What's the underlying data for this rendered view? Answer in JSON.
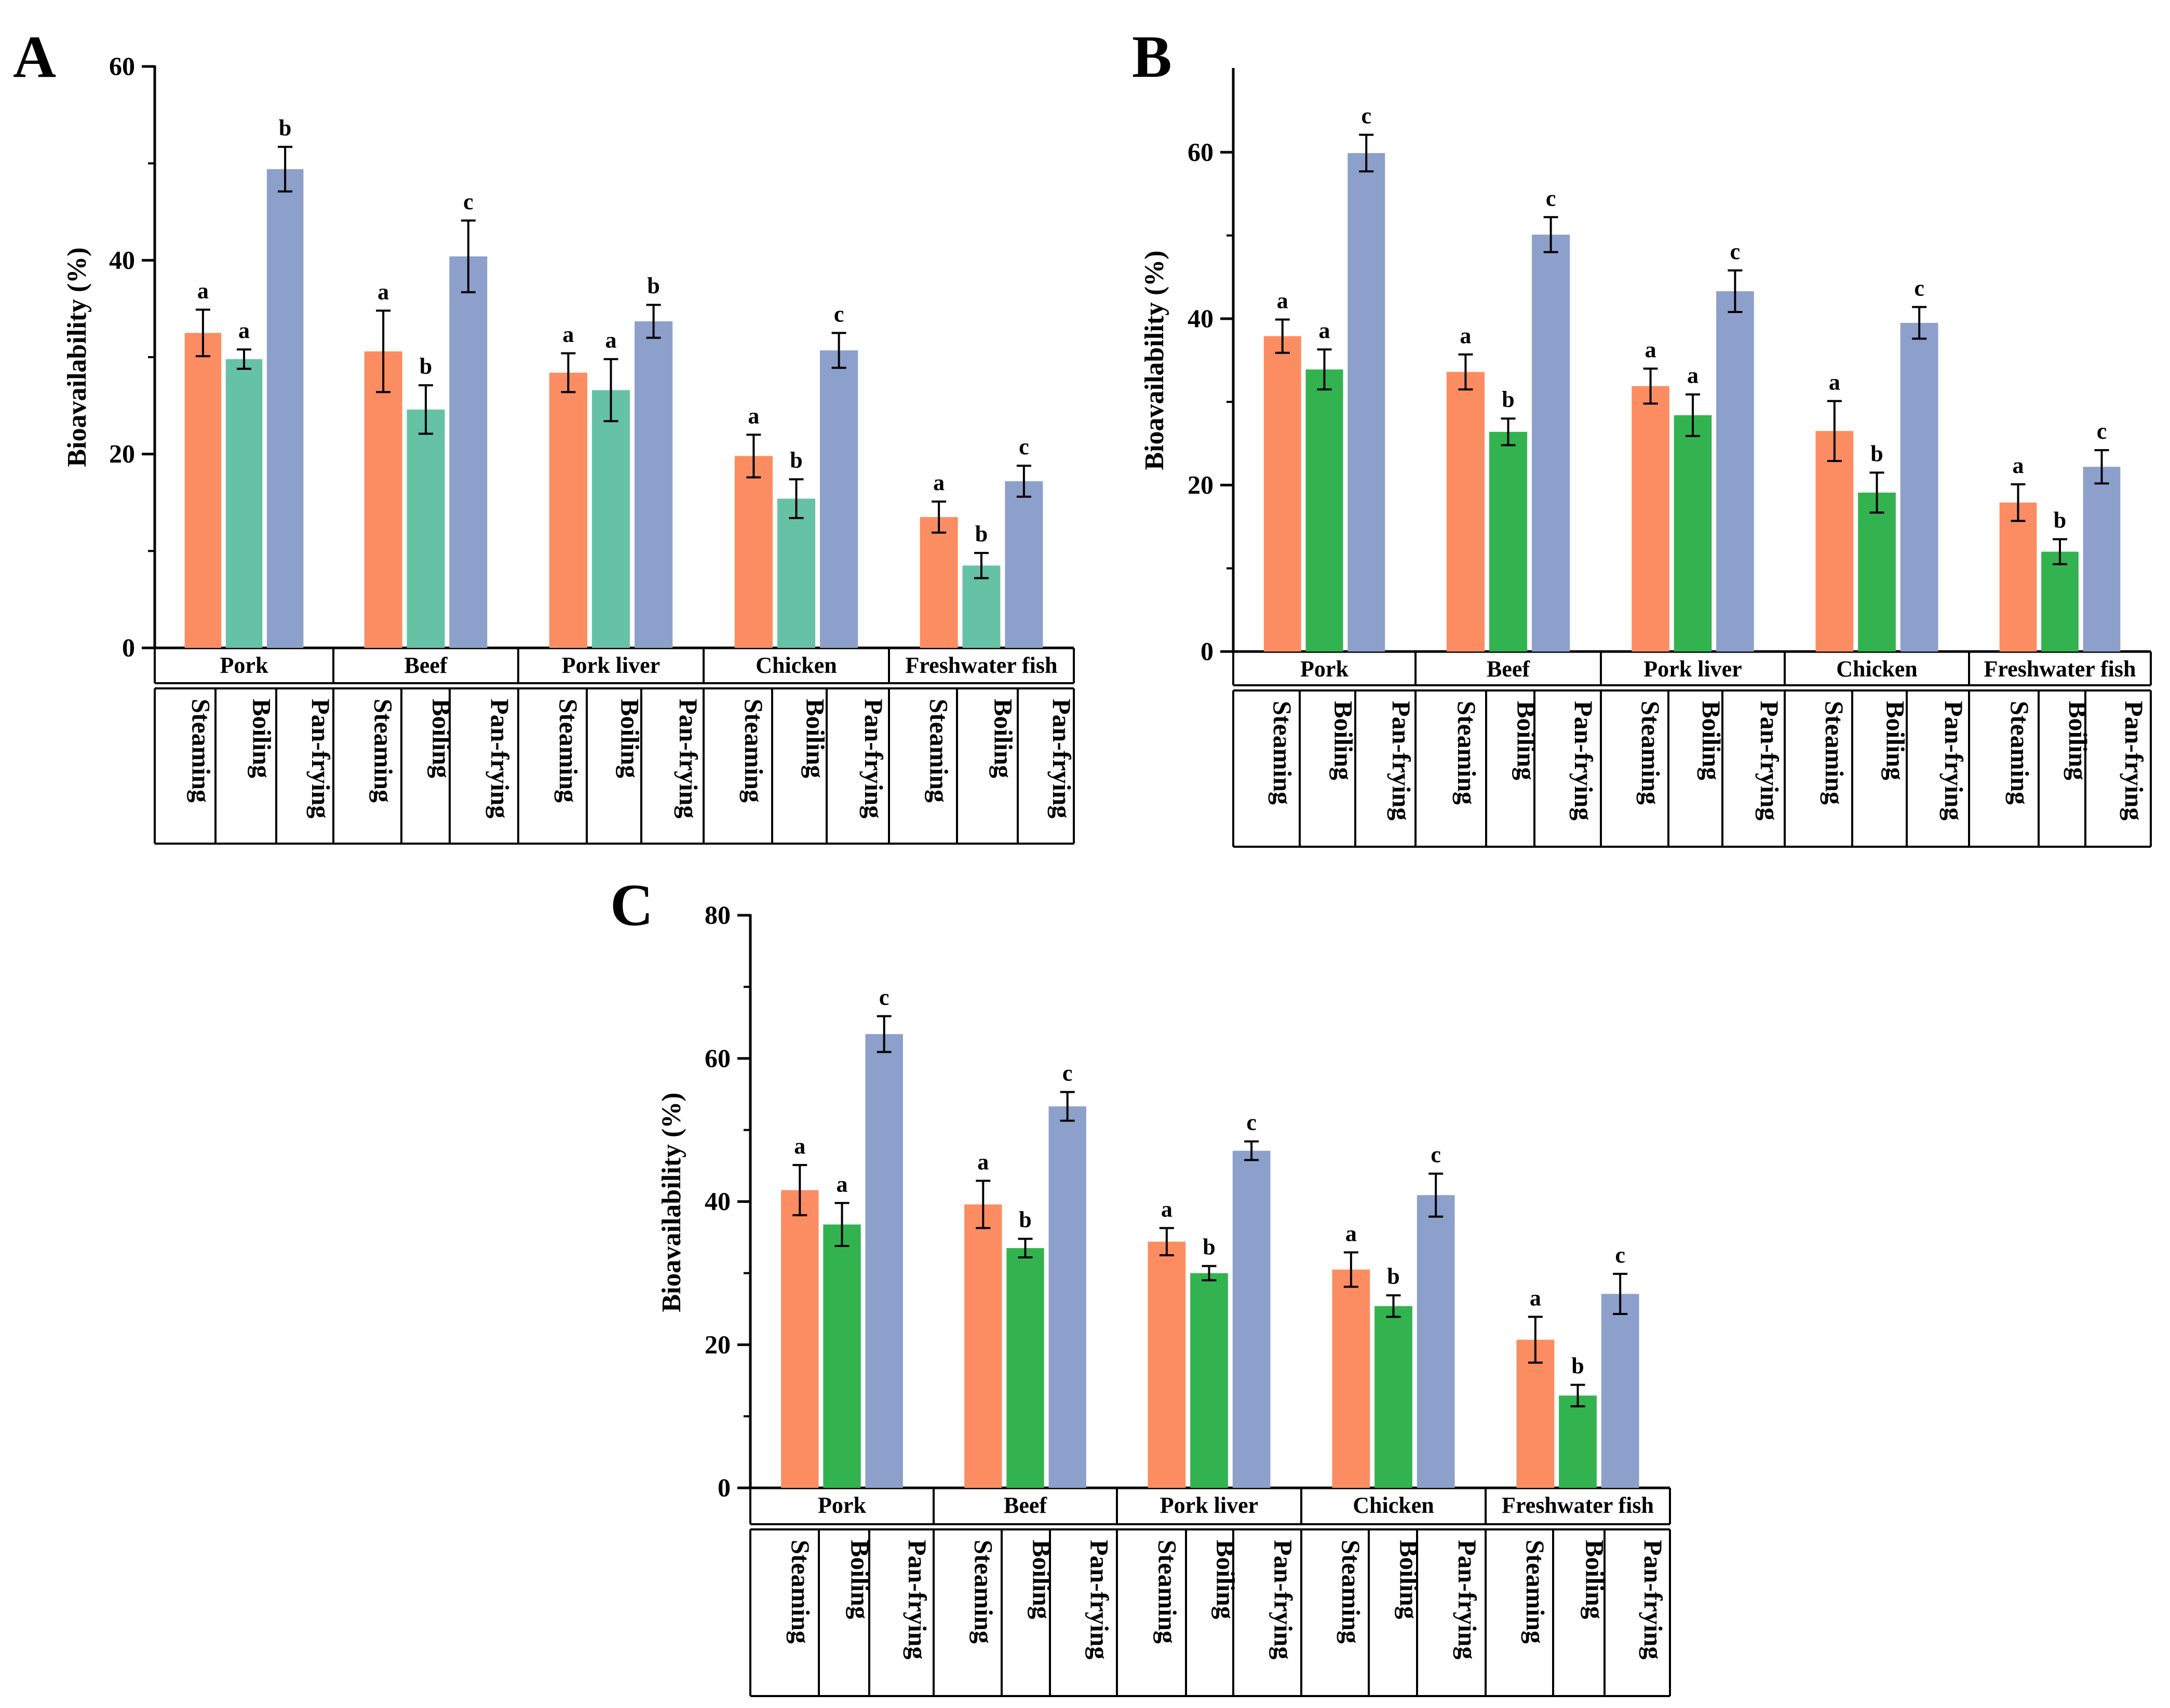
{
  "colors": {
    "steaming": "#FC8D62",
    "boiling_A": "#66C2A5",
    "boiling_BC": "#33B34F",
    "pan_frying": "#8DA0CB",
    "axis": "#000000"
  },
  "chart_data": [
    {
      "panel": "A",
      "type": "bar",
      "ylabel": "Bioavailability (%)",
      "ylim": [
        0,
        60
      ],
      "yticks": [
        0,
        20,
        40,
        60
      ],
      "categories": [
        "Pork",
        "Beef",
        "Pork liver",
        "Chicken",
        "Freshwater fish"
      ],
      "methods": [
        "Steaming",
        "Boiling",
        "Pan-frying"
      ],
      "series": [
        {
          "values": [
            32.5,
            30.6,
            28.4,
            19.8,
            13.5
          ],
          "errors": [
            2.4,
            4.2,
            2.0,
            2.2,
            1.6
          ],
          "letters": [
            "a",
            "a",
            "a",
            "a",
            "a"
          ]
        },
        {
          "values": [
            29.8,
            24.6,
            26.6,
            15.4,
            8.5
          ],
          "errors": [
            1.0,
            2.5,
            3.2,
            2.0,
            1.3
          ],
          "letters": [
            "a",
            "b",
            "a",
            "b",
            "b"
          ]
        },
        {
          "values": [
            49.4,
            40.4,
            33.7,
            30.7,
            17.2
          ],
          "errors": [
            2.3,
            3.7,
            1.7,
            1.8,
            1.6
          ],
          "letters": [
            "b",
            "c",
            "b",
            "c",
            "c"
          ]
        }
      ]
    },
    {
      "panel": "B",
      "type": "bar",
      "ylabel": "Bioavailability (%)",
      "ylim": [
        0,
        70
      ],
      "yticks": [
        0,
        20,
        40,
        60
      ],
      "categories": [
        "Pork",
        "Beef",
        "Pork liver",
        "Chicken",
        "Freshwater fish"
      ],
      "methods": [
        "Steaming",
        "Boiling",
        "Pan-frying"
      ],
      "series": [
        {
          "values": [
            37.9,
            33.6,
            31.9,
            26.5,
            17.9
          ],
          "errors": [
            2.0,
            2.1,
            2.1,
            3.6,
            2.2
          ],
          "letters": [
            "a",
            "a",
            "a",
            "a",
            "a"
          ]
        },
        {
          "values": [
            33.9,
            26.4,
            28.4,
            19.1,
            12.0
          ],
          "errors": [
            2.4,
            1.6,
            2.5,
            2.4,
            1.5
          ],
          "letters": [
            "a",
            "b",
            "a",
            "b",
            "b"
          ]
        },
        {
          "values": [
            59.9,
            50.1,
            43.3,
            39.5,
            22.2
          ],
          "errors": [
            2.2,
            2.1,
            2.5,
            1.9,
            2.0
          ],
          "letters": [
            "c",
            "c",
            "c",
            "c",
            "c"
          ]
        }
      ]
    },
    {
      "panel": "C",
      "type": "bar",
      "ylabel": "Bioavailability (%)",
      "ylim": [
        0,
        80
      ],
      "yticks": [
        0,
        20,
        40,
        60,
        80
      ],
      "categories": [
        "Pork",
        "Beef",
        "Pork liver",
        "Chicken",
        "Freshwater fish"
      ],
      "methods": [
        "Steaming",
        "Boiling",
        "Pan-frying"
      ],
      "series": [
        {
          "values": [
            41.6,
            39.6,
            34.4,
            30.5,
            20.7
          ],
          "errors": [
            3.5,
            3.3,
            1.9,
            2.4,
            3.2
          ],
          "letters": [
            "a",
            "a",
            "a",
            "a",
            "a"
          ]
        },
        {
          "values": [
            36.8,
            33.5,
            30.0,
            25.4,
            12.9
          ],
          "errors": [
            3.0,
            1.3,
            1.0,
            1.5,
            1.5
          ],
          "letters": [
            "a",
            "b",
            "b",
            "b",
            "b"
          ]
        },
        {
          "values": [
            63.4,
            53.3,
            47.1,
            40.9,
            27.1
          ],
          "errors": [
            2.5,
            2.0,
            1.3,
            3.0,
            2.8
          ],
          "letters": [
            "c",
            "c",
            "c",
            "c",
            "c"
          ]
        }
      ]
    }
  ]
}
